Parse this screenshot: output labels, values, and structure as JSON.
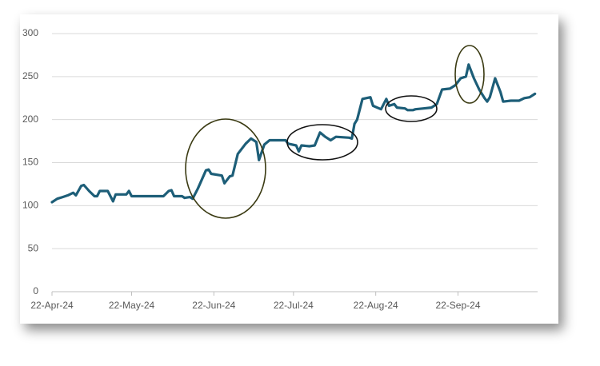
{
  "chart_data": {
    "type": "line",
    "x": [
      "2024-04-22",
      "2024-04-24",
      "2024-04-26",
      "2024-04-28",
      "2024-04-30",
      "2024-05-01",
      "2024-05-03",
      "2024-05-04",
      "2024-05-06",
      "2024-05-08",
      "2024-05-09",
      "2024-05-10",
      "2024-05-13",
      "2024-05-15",
      "2024-05-16",
      "2024-05-20",
      "2024-05-21",
      "2024-05-22",
      "2024-06-03",
      "2024-06-05",
      "2024-06-06",
      "2024-06-07",
      "2024-06-10",
      "2024-06-11",
      "2024-06-13",
      "2024-06-14",
      "2024-06-16",
      "2024-06-19",
      "2024-06-20",
      "2024-06-21",
      "2024-06-25",
      "2024-06-26",
      "2024-06-28",
      "2024-06-29",
      "2024-07-01",
      "2024-07-04",
      "2024-07-06",
      "2024-07-08",
      "2024-07-09",
      "2024-07-11",
      "2024-07-13",
      "2024-07-19",
      "2024-07-20",
      "2024-07-23",
      "2024-07-24",
      "2024-07-25",
      "2024-07-28",
      "2024-07-30",
      "2024-08-01",
      "2024-08-03",
      "2024-08-05",
      "2024-08-07",
      "2024-08-12",
      "2024-08-13",
      "2024-08-14",
      "2024-08-15",
      "2024-08-17",
      "2024-08-20",
      "2024-08-21",
      "2024-08-24",
      "2024-08-26",
      "2024-08-27",
      "2024-08-29",
      "2024-08-30",
      "2024-09-02",
      "2024-09-03",
      "2024-09-05",
      "2024-09-06",
      "2024-09-09",
      "2024-09-12",
      "2024-09-14",
      "2024-09-16",
      "2024-09-19",
      "2024-09-21",
      "2024-09-23",
      "2024-09-25",
      "2024-09-26",
      "2024-09-28",
      "2024-09-30",
      "2024-10-02",
      "2024-10-03",
      "2024-10-04",
      "2024-10-06",
      "2024-10-08",
      "2024-10-09",
      "2024-10-12",
      "2024-10-15",
      "2024-10-17",
      "2024-10-19",
      "2024-10-21"
    ],
    "series": [
      {
        "color": "#1d5e78",
        "values": [
          104,
          108,
          110,
          112,
          115,
          112,
          123,
          124,
          117,
          111,
          111,
          117,
          117,
          105,
          113,
          113,
          117,
          111,
          111,
          117,
          118,
          111,
          111,
          109,
          110,
          108,
          120,
          141,
          142,
          137,
          135,
          126,
          134,
          135,
          160,
          172,
          178,
          174,
          153,
          171,
          176,
          176,
          172,
          170,
          163,
          170,
          169,
          170,
          185,
          180,
          176,
          180,
          179,
          178,
          195,
          200,
          224,
          226,
          216,
          212,
          224,
          216,
          218,
          214,
          213,
          211,
          211,
          212,
          213,
          214,
          218,
          235,
          236,
          240,
          248,
          250,
          264,
          248,
          235,
          225,
          221,
          226,
          248,
          232,
          221,
          222,
          222,
          225,
          226,
          230
        ]
      }
    ],
    "xlim": [
      "2024-04-22",
      "2024-10-22"
    ],
    "xticks": [
      {
        "value": "2024-04-22",
        "label": "22-Apr-24"
      },
      {
        "value": "2024-05-22",
        "label": "22-May-24"
      },
      {
        "value": "2024-06-22",
        "label": "22-Jun-24"
      },
      {
        "value": "2024-07-22",
        "label": "22-Jul-24"
      },
      {
        "value": "2024-08-22",
        "label": "22-Aug-24"
      },
      {
        "value": "2024-09-22",
        "label": "22-Sep-24"
      }
    ],
    "ylim": [
      0,
      300
    ],
    "yticks": [
      0,
      50,
      100,
      150,
      200,
      250,
      300
    ],
    "grid": true
  }
}
